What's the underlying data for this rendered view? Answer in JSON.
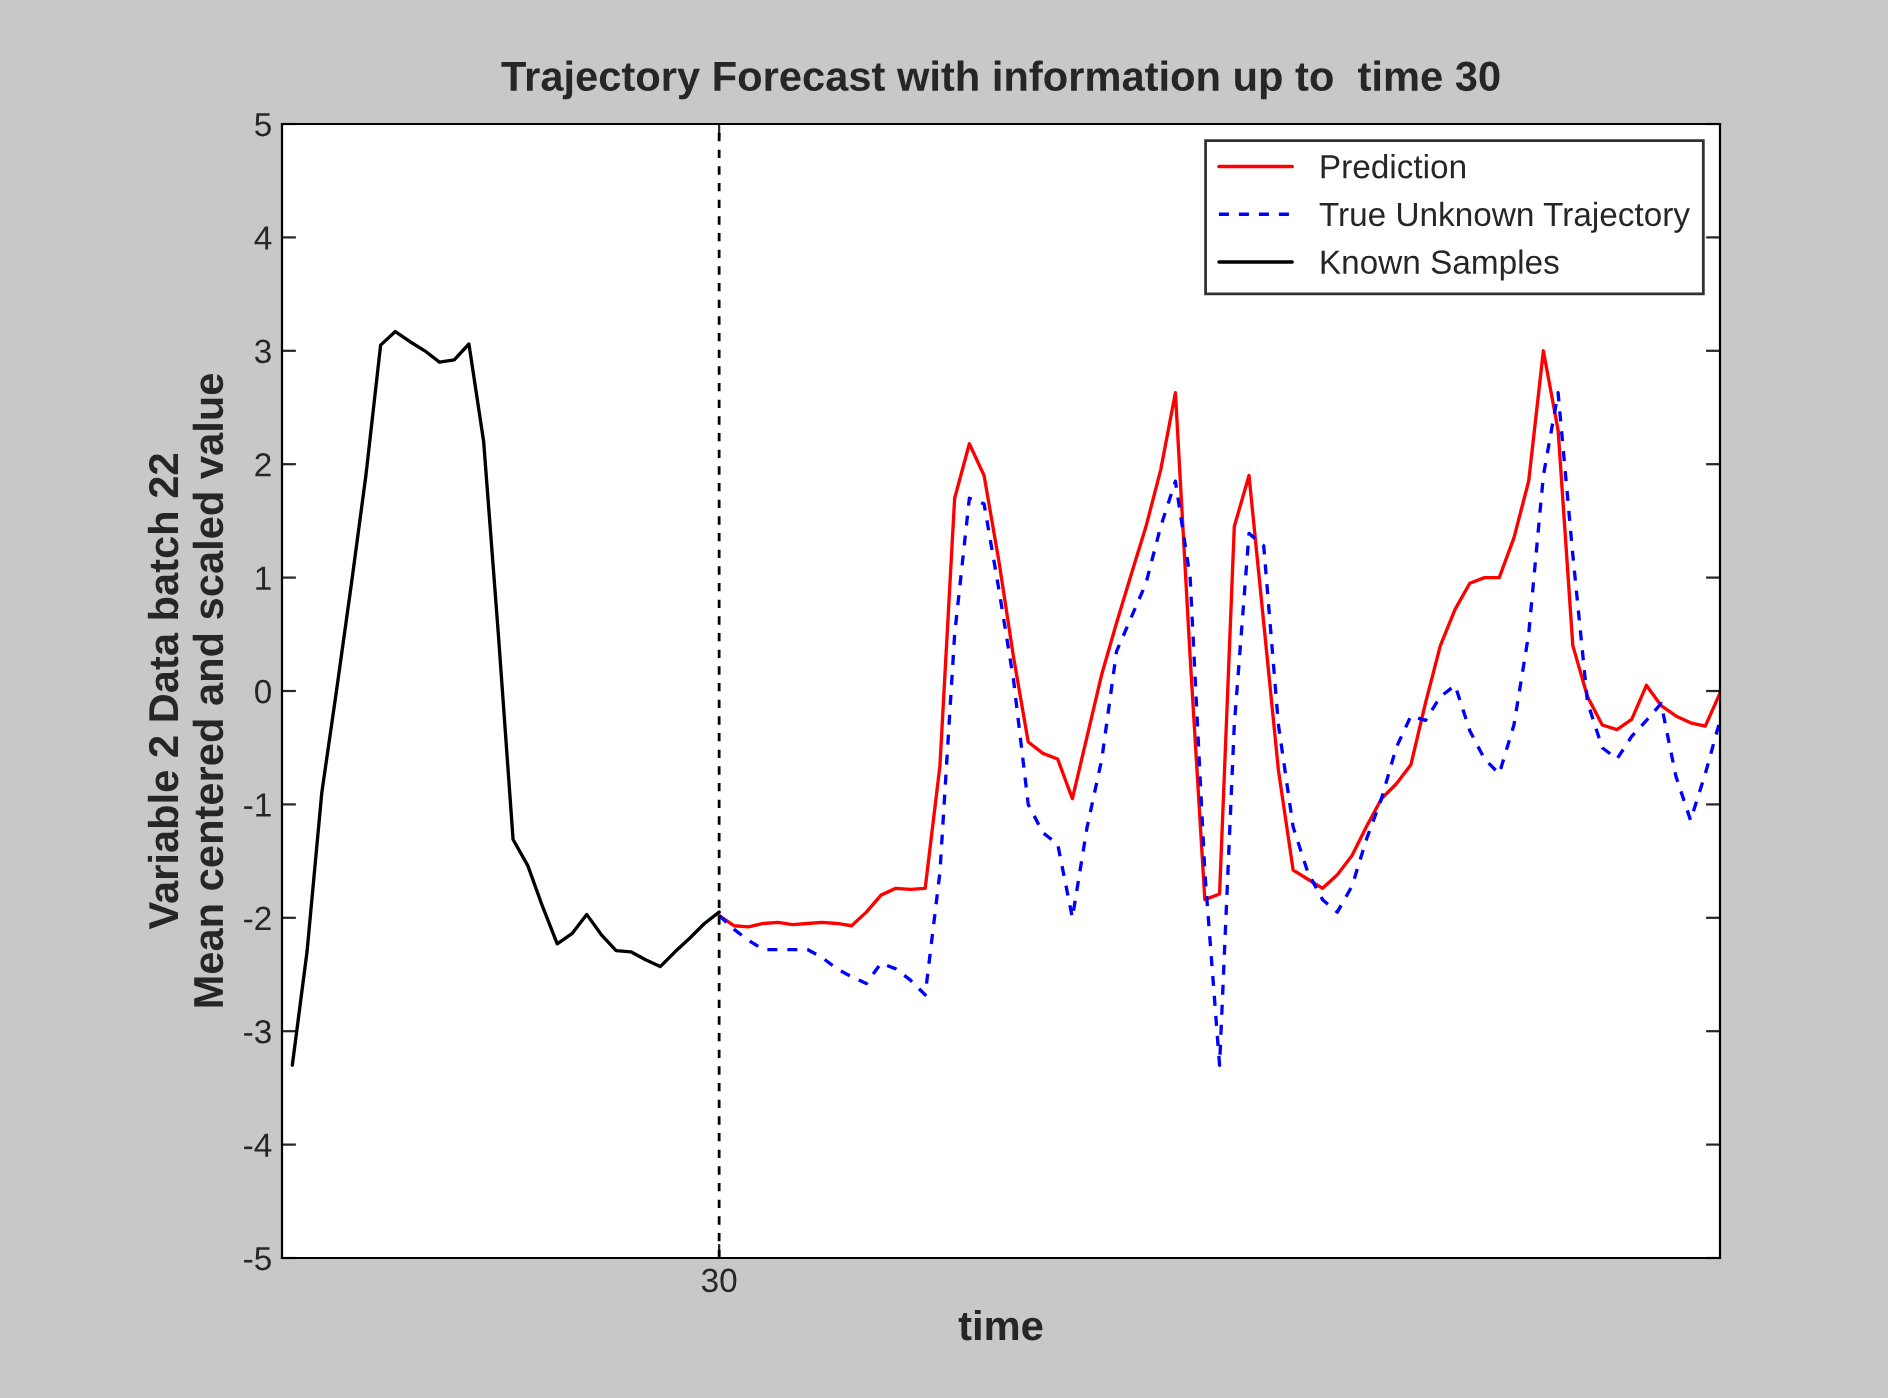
{
  "chart_data": {
    "type": "line",
    "title": "Trajectory Forecast with information up to  time 30",
    "xlabel": "time",
    "ylabel": "Variable 2 Data batch 22\nMean centered and scaled value",
    "categories": [
      null,
      null,
      null,
      null,
      null,
      null,
      null,
      null,
      null,
      null,
      null,
      null,
      null,
      null,
      null,
      null,
      null,
      null,
      null,
      null,
      null,
      null,
      null,
      null,
      null,
      null,
      null,
      null,
      null,
      "30",
      null,
      null,
      null,
      null,
      null,
      null,
      null,
      null,
      null,
      null,
      null,
      null,
      null,
      null,
      null,
      null,
      null,
      null,
      null,
      null,
      null,
      null,
      null,
      null,
      null,
      null,
      null,
      null,
      null,
      null,
      null,
      null,
      null,
      null,
      null,
      null,
      null,
      null,
      null,
      null,
      null,
      null,
      null,
      null,
      null,
      null,
      null,
      null,
      null,
      null,
      null,
      null,
      null,
      null,
      null,
      null,
      null,
      null,
      null,
      null,
      null,
      null,
      null,
      null,
      null,
      null,
      null,
      null
    ],
    "ylim": [
      -5,
      5
    ],
    "yticks": [
      {
        "value": -5,
        "label": "-5"
      },
      {
        "value": -4,
        "label": "-4"
      },
      {
        "value": -3,
        "label": "-3"
      },
      {
        "value": -2,
        "label": "-2"
      },
      {
        "value": -1,
        "label": "-1"
      },
      0,
      1,
      2,
      3,
      4,
      5
    ],
    "grid": false,
    "legend": "top right",
    "ref_lines": [
      {
        "axis": "x",
        "value": "30",
        "color": "#000000",
        "line_style": "dashed"
      }
    ],
    "series": [
      {
        "name": "Prediction",
        "color": "#ff0000",
        "line_style": "solid",
        "values": [
          null,
          null,
          null,
          null,
          null,
          null,
          null,
          null,
          null,
          null,
          null,
          null,
          null,
          null,
          null,
          null,
          null,
          null,
          null,
          null,
          null,
          null,
          null,
          null,
          null,
          null,
          null,
          null,
          null,
          -1.98,
          -2.07,
          -2.08,
          -2.05,
          -2.04,
          -2.06,
          -2.05,
          -2.04,
          -2.05,
          -2.07,
          -1.95,
          -1.8,
          -1.74,
          -1.75,
          -1.74,
          -0.66,
          1.7,
          2.18,
          1.9,
          1.15,
          0.3,
          -0.45,
          -0.55,
          -0.6,
          -0.95,
          -0.4,
          0.15,
          0.6,
          1.03,
          1.45,
          1.95,
          2.63,
          0.3,
          -1.84,
          -1.79,
          1.45,
          1.9,
          0.6,
          -0.7,
          -1.58,
          -1.66,
          -1.74,
          -1.62,
          -1.45,
          -1.19,
          -0.95,
          -0.82,
          -0.65,
          -0.1,
          0.4,
          0.72,
          0.95,
          1.0,
          1.0,
          1.35,
          1.85,
          3.0,
          2.3,
          0.4,
          -0.05,
          -0.3,
          -0.34,
          -0.25,
          0.05,
          -0.13,
          -0.22,
          -0.28,
          -0.31,
          -0.02
        ]
      },
      {
        "name": "True Unknown Trajectory",
        "color": "#0000ff",
        "line_style": "dashed",
        "values": [
          null,
          null,
          null,
          null,
          null,
          null,
          null,
          null,
          null,
          null,
          null,
          null,
          null,
          null,
          null,
          null,
          null,
          null,
          null,
          null,
          null,
          null,
          null,
          null,
          null,
          null,
          null,
          null,
          null,
          -1.98,
          -2.1,
          -2.2,
          -2.28,
          -2.28,
          -2.28,
          -2.28,
          -2.35,
          -2.45,
          -2.52,
          -2.58,
          -2.4,
          -2.45,
          -2.55,
          -2.68,
          -1.6,
          0.5,
          1.7,
          1.65,
          0.9,
          0.1,
          -1.0,
          -1.25,
          -1.35,
          -2.0,
          -1.2,
          -0.6,
          0.35,
          0.65,
          0.95,
          1.45,
          1.85,
          1.0,
          -1.6,
          -3.3,
          -0.3,
          1.39,
          1.28,
          -0.3,
          -1.2,
          -1.6,
          -1.84,
          -1.95,
          -1.72,
          -1.3,
          -0.95,
          -0.5,
          -0.22,
          -0.26,
          -0.05,
          0.05,
          -0.35,
          -0.6,
          -0.73,
          -0.3,
          0.5,
          1.9,
          2.63,
          1.2,
          -0.1,
          -0.5,
          -0.6,
          -0.4,
          -0.26,
          -0.11,
          -0.75,
          -1.14,
          -0.73,
          -0.26
        ]
      },
      {
        "name": "Known Samples",
        "color": "#000000",
        "line_style": "solid",
        "values": [
          -3.3,
          -2.3,
          -0.9,
          0.0,
          0.93,
          1.9,
          3.05,
          3.17,
          3.08,
          3.0,
          2.9,
          2.92,
          3.06,
          2.2,
          0.5,
          -1.31,
          -1.54,
          -1.9,
          -2.23,
          -2.14,
          -1.97,
          -2.15,
          -2.29,
          -2.3,
          -2.37,
          -2.43,
          -2.3,
          -2.18,
          -2.05,
          -1.95,
          null,
          null,
          null,
          null,
          null,
          null,
          null,
          null,
          null,
          null,
          null,
          null,
          null,
          null,
          null,
          null,
          null,
          null,
          null,
          null,
          null,
          null,
          null,
          null,
          null,
          null,
          null,
          null,
          null,
          null,
          null,
          null,
          null,
          null,
          null,
          null,
          null,
          null,
          null,
          null,
          null,
          null,
          null,
          null,
          null,
          null,
          null,
          null,
          null,
          null,
          null,
          null,
          null,
          null,
          null,
          null,
          null,
          null,
          null,
          null,
          null,
          null,
          null,
          null,
          null,
          null,
          null,
          null
        ]
      }
    ]
  }
}
